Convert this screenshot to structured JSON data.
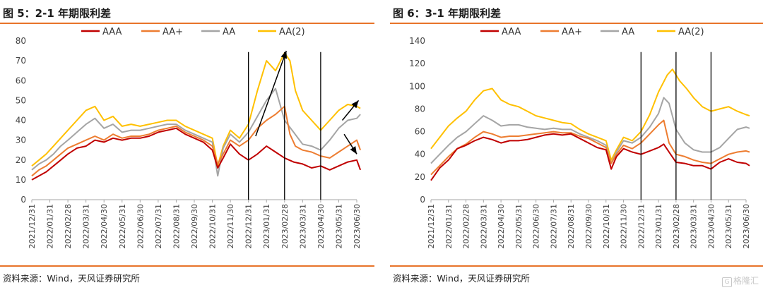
{
  "colors": {
    "AAA": "#c00000",
    "AA+": "#ed7d31",
    "AA": "#a5a5a5",
    "AA(2)": "#ffc000",
    "accent": "#e8742a"
  },
  "watermark": {
    "text": "格隆汇",
    "icon": "G"
  },
  "charts": [
    {
      "title": "图 5：2-1 年期限利差",
      "source": "资料来源：Wind，天风证券研究所",
      "chart_data": {
        "type": "line",
        "ylim": [
          0,
          80
        ],
        "yticks": [
          0,
          10,
          20,
          30,
          40,
          50,
          60,
          70,
          80
        ],
        "xticks": [
          "2021/12/31",
          "2022/01/31",
          "2022/02/28",
          "2022/03/31",
          "2022/04/30",
          "2022/05/31",
          "2022/06/30",
          "2022/07/31",
          "2022/08/31",
          "2022/09/30",
          "2022/10/31",
          "2022/11/30",
          "2022/12/31",
          "2023/01/31",
          "2023/02/28",
          "2023/03/31",
          "2023/04/30",
          "2023/05/31",
          "2023/06/30"
        ],
        "legend": [
          "AAA",
          "AA+",
          "AA",
          "AA(2)"
        ],
        "vlines": [
          12.0,
          14.0,
          16.0
        ],
        "arrows": [
          {
            "from": [
              12.4,
              32
            ],
            "to": [
              14.1,
              75
            ]
          },
          {
            "from": [
              17.2,
              40
            ],
            "to": [
              18.1,
              50
            ]
          },
          {
            "from": [
              17.3,
              33
            ],
            "to": [
              18.0,
              23
            ]
          }
        ],
        "series": [
          {
            "name": "AAA",
            "x": [
              0,
              0.4,
              0.8,
              1.2,
              1.6,
              2.0,
              2.5,
              3.0,
              3.5,
              4.0,
              4.5,
              5.0,
              5.5,
              6.0,
              6.5,
              7.0,
              7.5,
              8.0,
              8.5,
              9.0,
              9.5,
              10.0,
              10.3,
              10.6,
              11.0,
              11.5,
              12.0,
              12.5,
              13.0,
              13.5,
              14.0,
              14.5,
              15.0,
              15.5,
              16.0,
              16.5,
              17.0,
              17.5,
              18.0,
              18.2
            ],
            "y": [
              10,
              12,
              14,
              17,
              20,
              23,
              26,
              27,
              30,
              29,
              31,
              30,
              31,
              31,
              32,
              34,
              35,
              36,
              33,
              31,
              29,
              25,
              16,
              21,
              28,
              23,
              20,
              23,
              27,
              24,
              21,
              19,
              18,
              16,
              17,
              15,
              17,
              19,
              20,
              15
            ]
          },
          {
            "name": "AA+",
            "x": [
              0,
              0.4,
              0.8,
              1.2,
              1.6,
              2.0,
              2.5,
              3.0,
              3.5,
              4.0,
              4.5,
              5.0,
              5.5,
              6.0,
              6.5,
              7.0,
              7.5,
              8.0,
              8.5,
              9.0,
              9.5,
              10.0,
              10.3,
              10.6,
              11.0,
              11.5,
              12.0,
              12.5,
              13.0,
              13.5,
              14.0,
              14.3,
              14.6,
              15.0,
              15.5,
              16.0,
              16.5,
              17.0,
              17.5,
              18.0,
              18.2
            ],
            "y": [
              12,
              15,
              17,
              20,
              23,
              26,
              28,
              30,
              32,
              30,
              33,
              31,
              32,
              32,
              33,
              35,
              36,
              37,
              34,
              32,
              30,
              27,
              18,
              23,
              30,
              27,
              30,
              36,
              40,
              43,
              47,
              33,
              27,
              25,
              24,
              22,
              21,
              24,
              27,
              30,
              25
            ]
          },
          {
            "name": "AA",
            "x": [
              0,
              0.4,
              0.8,
              1.2,
              1.6,
              2.0,
              2.5,
              3.0,
              3.5,
              4.0,
              4.5,
              5.0,
              5.5,
              6.0,
              6.5,
              7.0,
              7.5,
              8.0,
              8.5,
              9.0,
              9.5,
              10.0,
              10.3,
              10.6,
              11.0,
              11.5,
              12.0,
              12.5,
              13.0,
              13.5,
              14.0,
              14.5,
              15.0,
              15.5,
              16.0,
              16.5,
              17.0,
              17.5,
              18.0,
              18.2
            ],
            "y": [
              15,
              18,
              20,
              23,
              27,
              30,
              34,
              38,
              41,
              36,
              38,
              34,
              35,
              35,
              36,
              37,
              38,
              38,
              35,
              33,
              31,
              29,
              12,
              26,
              33,
              29,
              34,
              42,
              50,
              56,
              40,
              34,
              28,
              27,
              25,
              30,
              36,
              40,
              41,
              43
            ]
          },
          {
            "name": "AA(2)",
            "x": [
              0,
              0.4,
              0.8,
              1.2,
              1.6,
              2.0,
              2.5,
              3.0,
              3.5,
              4.0,
              4.5,
              5.0,
              5.5,
              6.0,
              6.5,
              7.0,
              7.5,
              8.0,
              8.5,
              9.0,
              9.5,
              10.0,
              10.3,
              10.6,
              11.0,
              11.5,
              12.0,
              12.5,
              13.0,
              13.5,
              14.0,
              14.3,
              14.6,
              15.0,
              15.5,
              16.0,
              16.5,
              17.0,
              17.5,
              18.0,
              18.2
            ],
            "y": [
              17,
              20,
              23,
              27,
              31,
              35,
              40,
              45,
              47,
              40,
              42,
              37,
              38,
              37,
              38,
              39,
              40,
              40,
              37,
              35,
              33,
              31,
              17,
              27,
              35,
              31,
              38,
              55,
              70,
              65,
              74,
              70,
              55,
              45,
              40,
              35,
              40,
              45,
              48,
              47,
              46
            ]
          }
        ]
      }
    },
    {
      "title": "图 6：3-1 年期限利差",
      "source": "资料来源：Wind，天风证券研究所",
      "chart_data": {
        "type": "line",
        "ylim": [
          0,
          140
        ],
        "yticks": [
          0,
          20,
          40,
          60,
          80,
          100,
          120,
          140
        ],
        "xticks": [
          "2021/12/31",
          "2022/01/31",
          "2022/02/28",
          "2022/03/31",
          "2022/04/30",
          "2022/05/31",
          "2022/06/30",
          "2022/07/31",
          "2022/08/31",
          "2022/09/30",
          "2022/10/31",
          "2022/11/30",
          "2022/12/31",
          "2023/01/31",
          "2023/02/28",
          "2023/03/31",
          "2023/04/30",
          "2023/05/31",
          "2023/06/30"
        ],
        "legend": [
          "AAA",
          "AA+",
          "AA",
          "AA(2)"
        ],
        "vlines": [
          12.0,
          14.0,
          16.0
        ],
        "arrows": [],
        "series": [
          {
            "name": "AAA",
            "x": [
              0,
              0.5,
              1.0,
              1.5,
              2.0,
              2.5,
              3.0,
              3.5,
              4.0,
              4.5,
              5.0,
              5.5,
              6.0,
              6.5,
              7.0,
              7.5,
              8.0,
              8.5,
              9.0,
              9.5,
              10.0,
              10.3,
              10.6,
              11.0,
              11.5,
              12.0,
              12.5,
              13.0,
              13.3,
              13.6,
              14.0,
              14.5,
              15.0,
              15.5,
              16.0,
              16.5,
              17.0,
              17.5,
              18.0,
              18.2
            ],
            "y": [
              17,
              28,
              35,
              45,
              48,
              52,
              55,
              53,
              50,
              52,
              52,
              53,
              55,
              57,
              58,
              57,
              58,
              54,
              50,
              46,
              44,
              27,
              38,
              45,
              42,
              40,
              43,
              46,
              49,
              42,
              33,
              32,
              30,
              30,
              27,
              33,
              36,
              33,
              32,
              30
            ]
          },
          {
            "name": "AA+",
            "x": [
              0,
              0.5,
              1.0,
              1.5,
              2.0,
              2.5,
              3.0,
              3.5,
              4.0,
              4.5,
              5.0,
              5.5,
              6.0,
              6.5,
              7.0,
              7.5,
              8.0,
              8.5,
              9.0,
              9.5,
              10.0,
              10.3,
              10.6,
              11.0,
              11.5,
              12.0,
              12.5,
              13.0,
              13.3,
              13.6,
              14.0,
              14.5,
              15.0,
              15.5,
              16.0,
              16.5,
              17.0,
              17.5,
              18.0,
              18.2
            ],
            "y": [
              22,
              30,
              38,
              45,
              49,
              55,
              60,
              58,
              55,
              56,
              56,
              57,
              58,
              59,
              60,
              59,
              59,
              56,
              54,
              50,
              46,
              32,
              40,
              48,
              45,
              50,
              58,
              66,
              70,
              50,
              40,
              38,
              35,
              33,
              32,
              36,
              40,
              42,
              43,
              42
            ]
          },
          {
            "name": "AA",
            "x": [
              0,
              0.5,
              1.0,
              1.5,
              2.0,
              2.5,
              3.0,
              3.5,
              4.0,
              4.5,
              5.0,
              5.5,
              6.0,
              6.5,
              7.0,
              7.5,
              8.0,
              8.5,
              9.0,
              9.5,
              10.0,
              10.3,
              10.6,
              11.0,
              11.5,
              12.0,
              12.5,
              13.0,
              13.3,
              13.6,
              14.0,
              14.5,
              15.0,
              15.5,
              16.0,
              16.5,
              17.0,
              17.5,
              18.0,
              18.2
            ],
            "y": [
              32,
              40,
              48,
              55,
              60,
              67,
              74,
              70,
              65,
              66,
              66,
              64,
              63,
              62,
              63,
              62,
              62,
              58,
              55,
              52,
              48,
              32,
              42,
              52,
              50,
              55,
              64,
              76,
              90,
              85,
              62,
              50,
              44,
              42,
              42,
              46,
              54,
              62,
              64,
              63
            ]
          },
          {
            "name": "AA(2)",
            "x": [
              0,
              0.5,
              1.0,
              1.5,
              2.0,
              2.5,
              3.0,
              3.5,
              4.0,
              4.5,
              5.0,
              5.5,
              6.0,
              6.5,
              7.0,
              7.5,
              8.0,
              8.5,
              9.0,
              9.5,
              10.0,
              10.3,
              10.6,
              11.0,
              11.5,
              12.0,
              12.5,
              13.0,
              13.5,
              13.8,
              14.2,
              14.6,
              15.0,
              15.5,
              16.0,
              16.5,
              17.0,
              17.5,
              18.0,
              18.2
            ],
            "y": [
              45,
              55,
              65,
              72,
              78,
              88,
              96,
              98,
              88,
              84,
              82,
              78,
              74,
              72,
              70,
              68,
              67,
              62,
              58,
              55,
              52,
              35,
              44,
              55,
              52,
              60,
              75,
              95,
              110,
              115,
              105,
              98,
              90,
              82,
              78,
              80,
              82,
              78,
              75,
              74
            ]
          }
        ]
      }
    }
  ]
}
